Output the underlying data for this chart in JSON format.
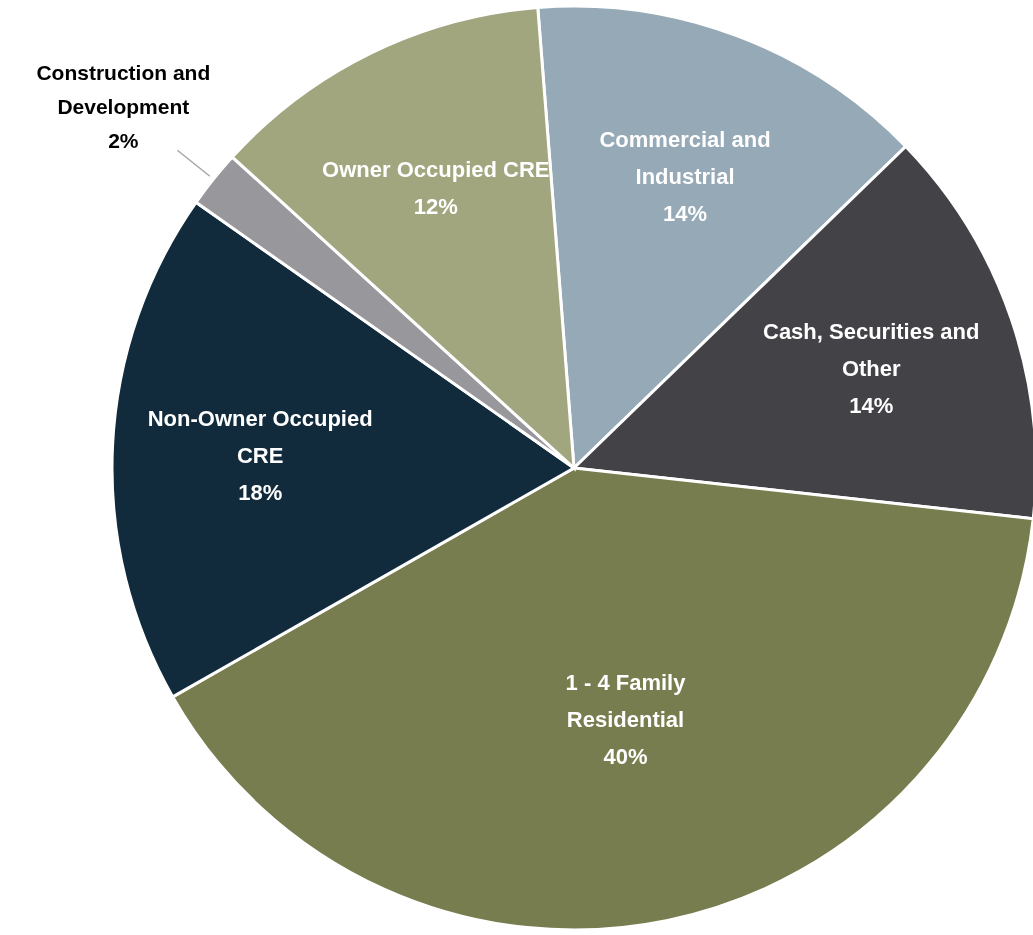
{
  "chart_data": {
    "type": "pie",
    "categories": [
      "Commercial and Industrial",
      "Cash, Securities and Other",
      "1 - 4 Family Residential",
      "Non-Owner Occupied CRE",
      "Construction and Development",
      "Owner Occupied CRE"
    ],
    "values": [
      14,
      14,
      40,
      18,
      2,
      12
    ],
    "value_labels": [
      "14%",
      "14%",
      "40%",
      "18%",
      "2%",
      "12%"
    ],
    "colors": [
      "#95a9b7",
      "#434247",
      "#787d4f",
      "#112b3c",
      "#98989c",
      "#a1a67f"
    ]
  }
}
